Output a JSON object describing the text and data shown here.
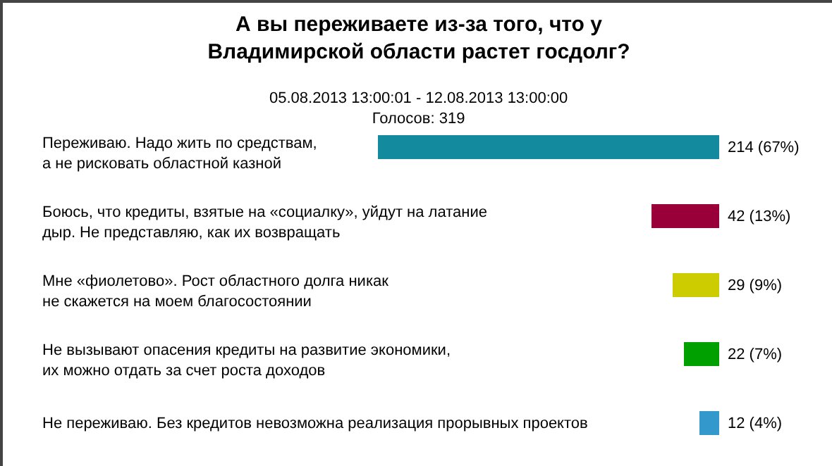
{
  "chart_data": {
    "type": "bar",
    "orientation": "horizontal",
    "title": "А вы переживаете из-за того, что у\nВладимирской области растет госдолг?",
    "subtitle": "05.08.2013 13:00:01 - 12.08.2013 13:00:00\nГолосов: 319",
    "categories": [
      "Переживаю. Надо жить по средствам,\nа не рисковать областной казной",
      "Боюсь, что кредиты, взятые на «социалку», уйдут на латание\nдыр. Не представляю, как их возвращать",
      "Мне «фиолетово». Рост областного долга никак\nне скажется на моем благосостоянии",
      "Не вызывают опасения кредиты на развитие экономики,\nих можно отдать за счет роста доходов",
      "Не переживаю. Без кредитов невозможна реализация прорывных проектов"
    ],
    "values": [
      214,
      42,
      29,
      22,
      12
    ],
    "colors": [
      "#138a9e",
      "#99003a",
      "#cccc00",
      "#00a000",
      "#3399cc"
    ],
    "value_labels": [
      "214 (67%)",
      "42 (13%)",
      "29 (9%)",
      "22 (7%)",
      "12 (4%)"
    ],
    "tick_labels": false
  }
}
